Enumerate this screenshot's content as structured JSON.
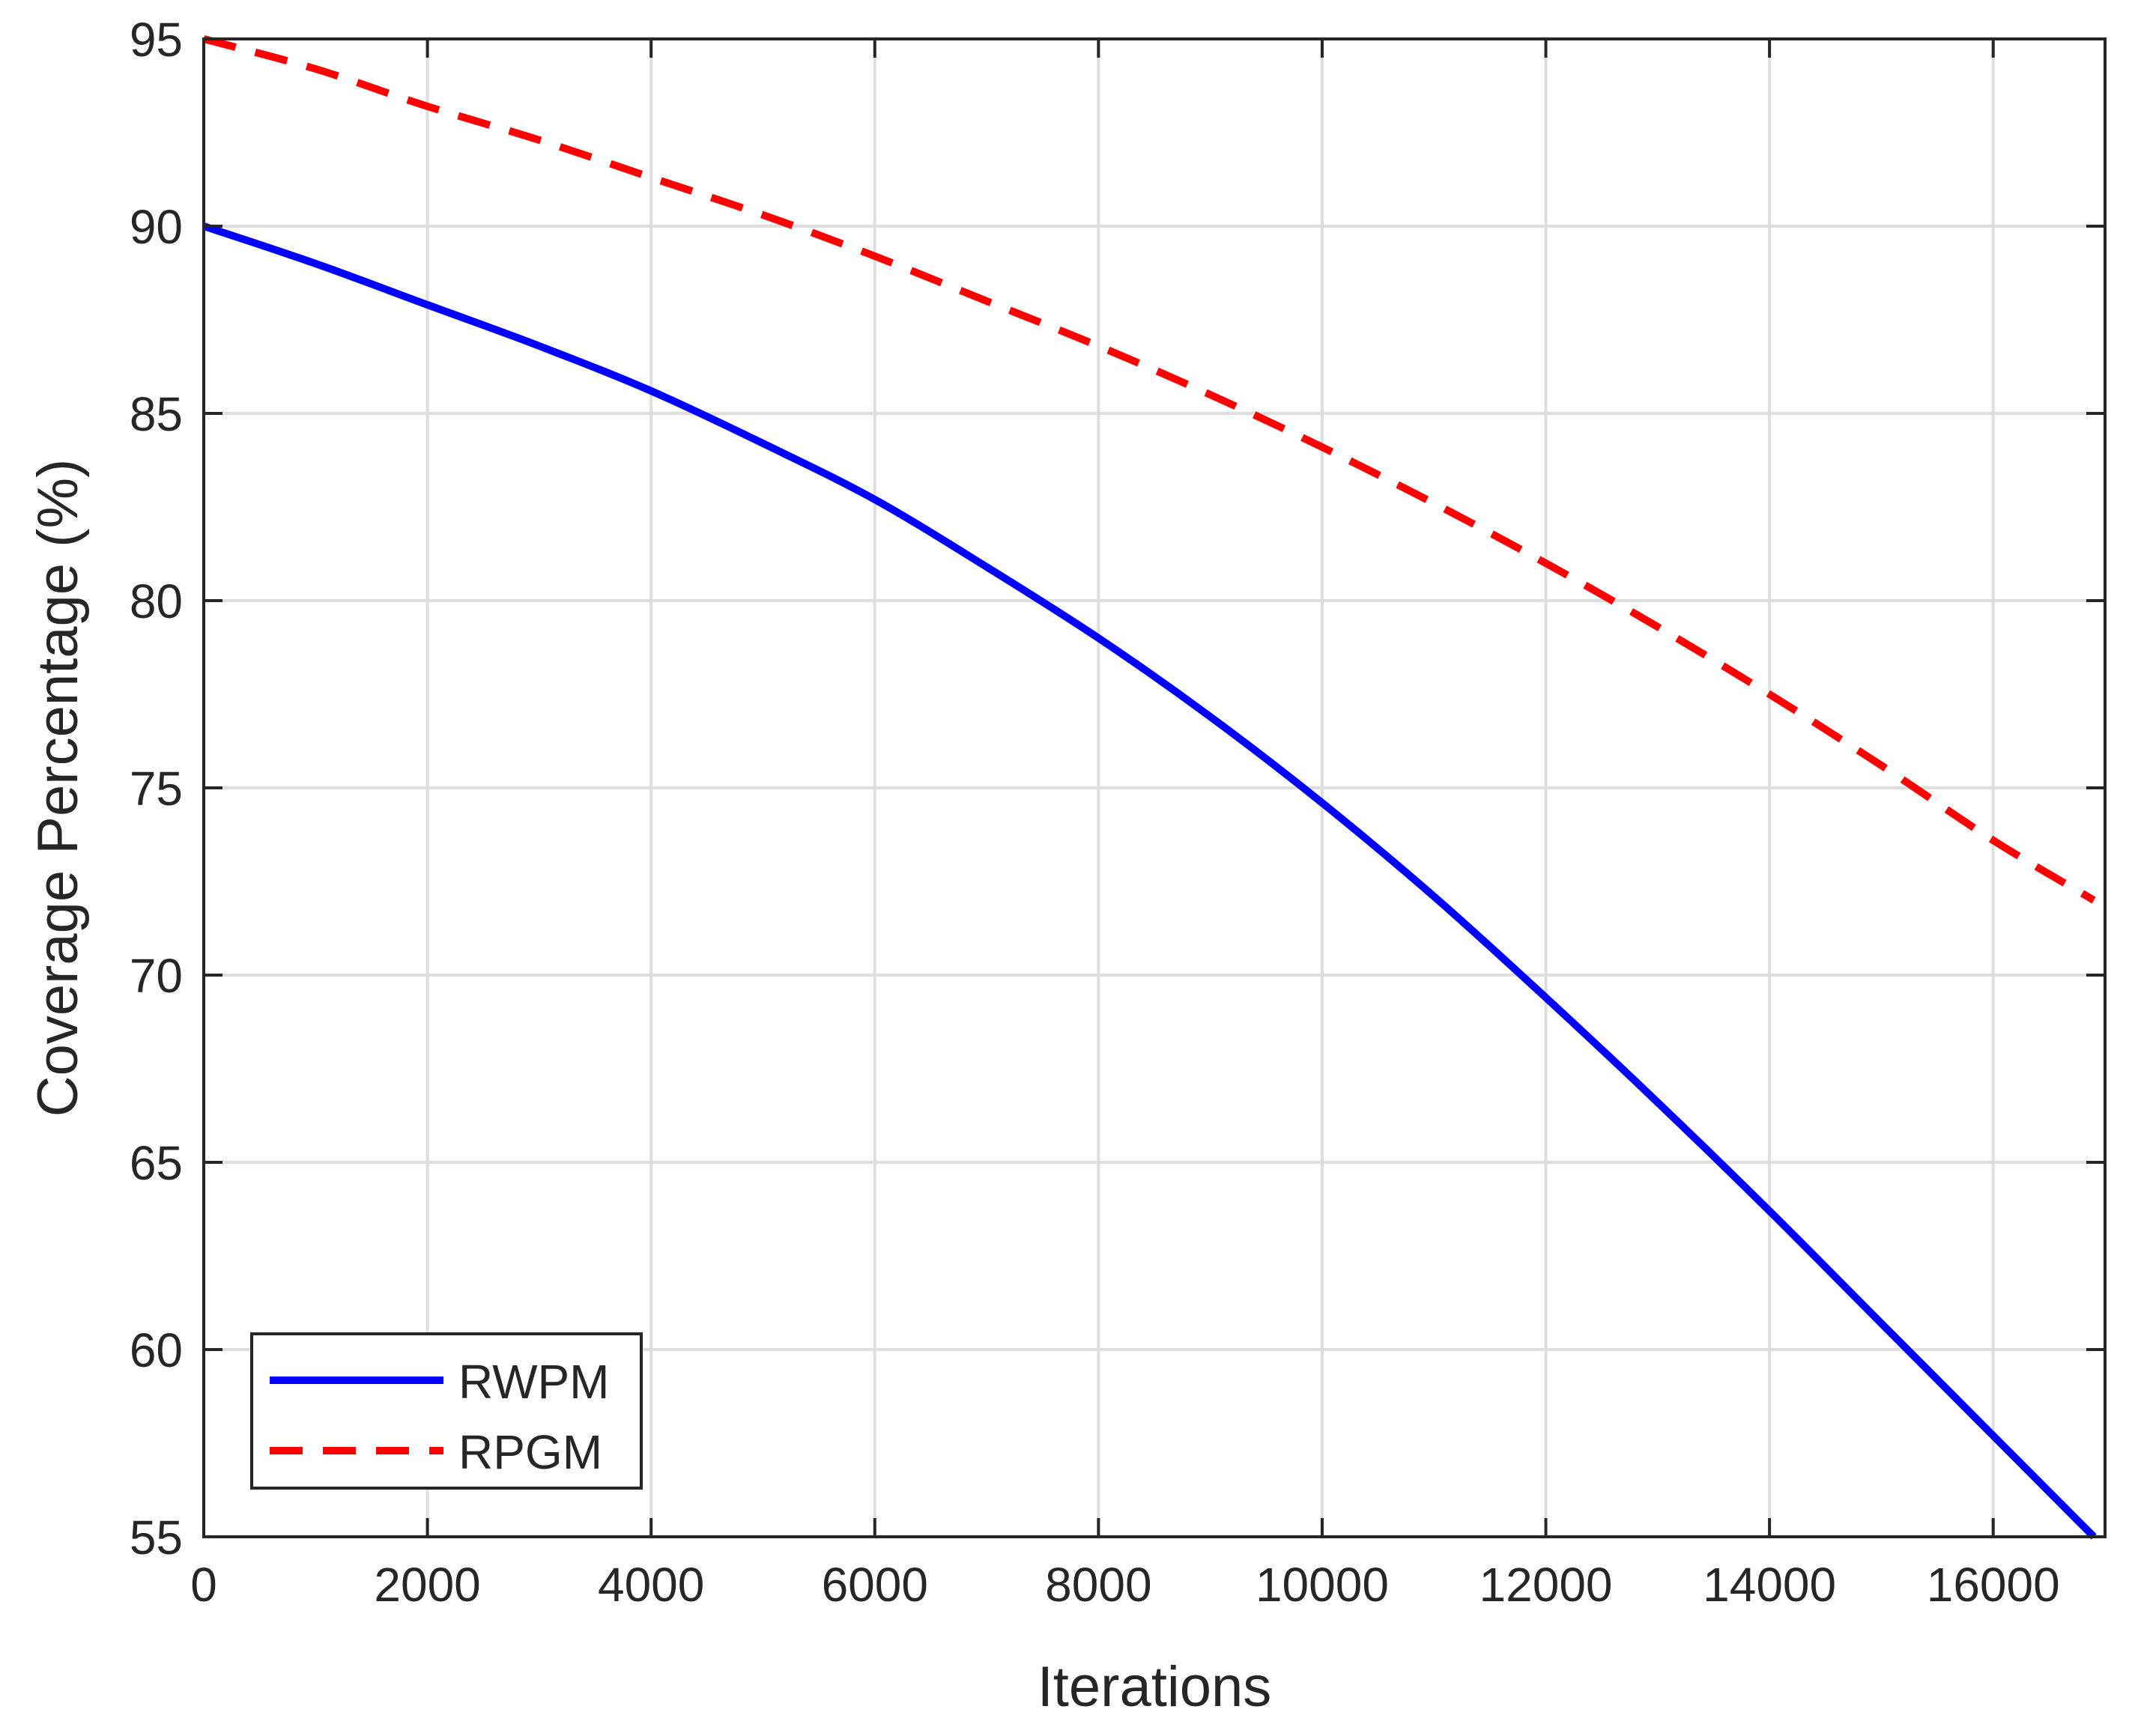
{
  "chart_data": {
    "type": "line",
    "title": "",
    "xlabel": "Iterations",
    "ylabel": "Coverage Percentage (%)",
    "xlim": [
      0,
      17000
    ],
    "ylim": [
      55,
      95
    ],
    "xticks": [
      0,
      2000,
      4000,
      6000,
      8000,
      10000,
      12000,
      14000,
      16000
    ],
    "xtick_labels": [
      "0",
      "2000",
      "4000",
      "6000",
      "8000",
      "10000",
      "12000",
      "14000",
      "16000"
    ],
    "yticks": [
      55,
      60,
      65,
      70,
      75,
      80,
      85,
      90,
      95
    ],
    "ytick_labels": [
      "55",
      "60",
      "65",
      "70",
      "75",
      "80",
      "85",
      "90",
      "95"
    ],
    "grid": true,
    "legend_position": "bottom-left",
    "x": [
      0,
      1000,
      2000,
      3000,
      4000,
      5000,
      6000,
      7000,
      8000,
      9000,
      10000,
      11000,
      12000,
      13000,
      14000,
      15000,
      16000,
      16900
    ],
    "series": [
      {
        "name": "RWPM",
        "color": "#0000ff",
        "line_style": "solid",
        "values": [
          90.0,
          89.0,
          87.9,
          86.8,
          85.6,
          84.2,
          82.7,
          80.9,
          79.0,
          76.9,
          74.6,
          72.1,
          69.4,
          66.6,
          63.7,
          60.7,
          57.7,
          55.0
        ]
      },
      {
        "name": "RPGM",
        "color": "#ff0000",
        "line_style": "dashed",
        "values": [
          95.0,
          94.2,
          93.2,
          92.3,
          91.3,
          90.3,
          89.2,
          88.0,
          86.8,
          85.5,
          84.1,
          82.6,
          81.0,
          79.3,
          77.5,
          75.6,
          73.6,
          72.0
        ]
      }
    ]
  }
}
